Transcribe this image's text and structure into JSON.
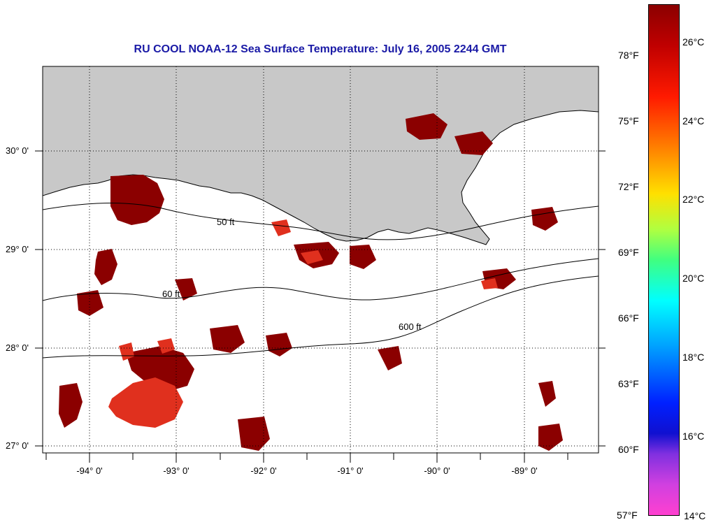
{
  "title": "RU COOL  NOAA-12  Sea Surface Temperature:  July 16, 2005 2244 GMT",
  "map": {
    "lon_labels": [
      "-94° 0'",
      "-93° 0'",
      "-92° 0'",
      "-91° 0'",
      "-90° 0'",
      "-89° 0'"
    ],
    "lat_labels": [
      "30° 0'",
      "29° 0'",
      "28° 0'",
      "27° 0'"
    ],
    "contour_labels": [
      "50 ft",
      "60 ft",
      "600 ft"
    ],
    "colors": {
      "land": "#c8c8c8",
      "warm": "#8b0000",
      "hot": "#e0301e"
    }
  },
  "colorbar": {
    "fahrenheit_labels": [
      "78°F",
      "75°F",
      "72°F",
      "69°F",
      "66°F",
      "63°F",
      "60°F",
      "57°F"
    ],
    "celsius_labels": [
      "26°C",
      "24°C",
      "22°C",
      "20°C",
      "18°C",
      "16°C",
      "14°C"
    ]
  }
}
